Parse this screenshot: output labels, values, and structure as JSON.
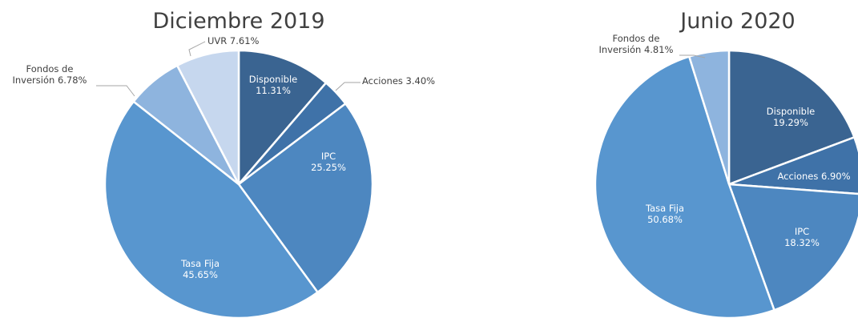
{
  "chart_data": [
    {
      "type": "pie",
      "title": "Diciembre 2019",
      "slices": [
        {
          "name": "Disponible",
          "value": 11.31,
          "label": [
            "Disponible",
            "11.31%"
          ],
          "color": "#3a6491"
        },
        {
          "name": "Acciones",
          "value": 3.4,
          "label": [
            "Acciones 3.40%"
          ],
          "color": "#3f72a8"
        },
        {
          "name": "IPC",
          "value": 25.25,
          "label": [
            "IPC",
            "25.25%"
          ],
          "color": "#4d87c0"
        },
        {
          "name": "Tasa Fija",
          "value": 45.65,
          "label": [
            "Tasa Fija",
            "45.65%"
          ],
          "color": "#5896cf"
        },
        {
          "name": "Fondos de Inversión",
          "value": 6.78,
          "label": [
            "Fondos de",
            "Inversión 6.78%"
          ],
          "color": "#8eb4de"
        },
        {
          "name": "UVR",
          "value": 7.61,
          "label": [
            "UVR 7.61%"
          ],
          "color": "#c6d7ee"
        }
      ]
    },
    {
      "type": "pie",
      "title": "Junio 2020",
      "slices": [
        {
          "name": "Disponible",
          "value": 19.29,
          "label": [
            "Disponible",
            "19.29%"
          ],
          "color": "#3a6491"
        },
        {
          "name": "Acciones",
          "value": 6.9,
          "label": [
            "Acciones 6.90%"
          ],
          "color": "#3f72a8"
        },
        {
          "name": "IPC",
          "value": 18.32,
          "label": [
            "IPC",
            "18.32%"
          ],
          "color": "#4d87c0"
        },
        {
          "name": "Tasa Fija",
          "value": 50.68,
          "label": [
            "Tasa Fija",
            "50.68%"
          ],
          "color": "#5896cf"
        },
        {
          "name": "Fondos de Inversión",
          "value": 4.81,
          "label": [
            "Fondos de",
            "Inversión 4.81%"
          ],
          "color": "#8eb4de"
        }
      ]
    }
  ]
}
